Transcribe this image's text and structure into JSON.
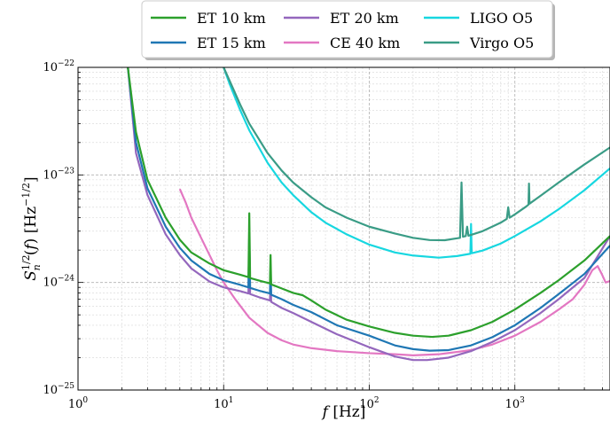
{
  "chart_data": {
    "type": "line",
    "xscale": "log",
    "yscale": "log",
    "xlim": [
      1,
      4500
    ],
    "ylim": [
      1e-25,
      1e-22
    ],
    "grid": true,
    "legend_position": "top-center",
    "xlabel": "f [Hz]",
    "ylabel": "S_n^{1/2}(f) [Hz^{-1/2}]",
    "x_ticks": [
      {
        "value": 1,
        "base": "10",
        "exp": "0"
      },
      {
        "value": 10,
        "base": "10",
        "exp": "1"
      },
      {
        "value": 100,
        "base": "10",
        "exp": "2"
      },
      {
        "value": 1000,
        "base": "10",
        "exp": "3"
      }
    ],
    "y_ticks": [
      {
        "value": 1e-25,
        "base": "10",
        "exp": "−25"
      },
      {
        "value": 1e-24,
        "base": "10",
        "exp": "−24"
      },
      {
        "value": 1e-23,
        "base": "10",
        "exp": "−23"
      },
      {
        "value": 1e-22,
        "base": "10",
        "exp": "−22"
      }
    ],
    "series": [
      {
        "name": "ET 10 km",
        "color": "#2ca02c",
        "points": [
          [
            2.2,
            1e-22
          ],
          [
            2.5,
            2.5e-23
          ],
          [
            3,
            9e-24
          ],
          [
            4,
            4e-24
          ],
          [
            5,
            2.5e-24
          ],
          [
            6,
            1.9e-24
          ],
          [
            8,
            1.5e-24
          ],
          [
            10,
            1.3e-24
          ],
          [
            13,
            1.18e-24
          ],
          [
            14.8,
            1.12e-24
          ],
          [
            15,
            4.4e-24
          ],
          [
            15.2,
            1.1e-24
          ],
          [
            18,
            1.03e-24
          ],
          [
            20.8,
            9.8e-25
          ],
          [
            21,
            1.8e-24
          ],
          [
            21.2,
            9.6e-25
          ],
          [
            25,
            8.8e-25
          ],
          [
            30,
            8e-25
          ],
          [
            35,
            7.6e-25
          ],
          [
            40,
            6.8e-25
          ],
          [
            50,
            5.6e-25
          ],
          [
            70,
            4.5e-25
          ],
          [
            100,
            3.9e-25
          ],
          [
            150,
            3.4e-25
          ],
          [
            200,
            3.2e-25
          ],
          [
            270,
            3.12e-25
          ],
          [
            350,
            3.2e-25
          ],
          [
            500,
            3.6e-25
          ],
          [
            700,
            4.3e-25
          ],
          [
            1000,
            5.6e-25
          ],
          [
            1500,
            8e-25
          ],
          [
            2000,
            1.05e-24
          ],
          [
            3000,
            1.6e-24
          ],
          [
            4500,
            2.7e-24
          ]
        ]
      },
      {
        "name": "ET 15 km",
        "color": "#1f77b4",
        "points": [
          [
            2.2,
            1e-22
          ],
          [
            2.5,
            2e-23
          ],
          [
            3,
            7.5e-24
          ],
          [
            4,
            3.3e-24
          ],
          [
            5,
            2.1e-24
          ],
          [
            6,
            1.6e-24
          ],
          [
            8,
            1.2e-24
          ],
          [
            10,
            1.05e-24
          ],
          [
            13,
            9.5e-25
          ],
          [
            14.8,
            9e-25
          ],
          [
            15,
            2.8e-24
          ],
          [
            15.2,
            8.9e-25
          ],
          [
            18,
            8.3e-25
          ],
          [
            20.8,
            7.9e-25
          ],
          [
            21,
            1.4e-24
          ],
          [
            21.2,
            7.7e-25
          ],
          [
            25,
            7e-25
          ],
          [
            30,
            6.2e-25
          ],
          [
            40,
            5.3e-25
          ],
          [
            60,
            4e-25
          ],
          [
            100,
            3.2e-25
          ],
          [
            150,
            2.6e-25
          ],
          [
            200,
            2.4e-25
          ],
          [
            260,
            2.32e-25
          ],
          [
            350,
            2.35e-25
          ],
          [
            500,
            2.6e-25
          ],
          [
            700,
            3.1e-25
          ],
          [
            1000,
            4e-25
          ],
          [
            1500,
            5.8e-25
          ],
          [
            2000,
            7.8e-25
          ],
          [
            3000,
            1.2e-24
          ],
          [
            4500,
            2.2e-24
          ]
        ]
      },
      {
        "name": "ET 20 km",
        "color": "#9467bd",
        "points": [
          [
            2.2,
            1e-22
          ],
          [
            2.5,
            1.6e-23
          ],
          [
            3,
            6.5e-24
          ],
          [
            4,
            2.8e-24
          ],
          [
            5,
            1.8e-24
          ],
          [
            6,
            1.35e-24
          ],
          [
            8,
            1.02e-24
          ],
          [
            10,
            9e-25
          ],
          [
            13,
            8.3e-25
          ],
          [
            14.8,
            7.9e-25
          ],
          [
            15,
            2.4e-24
          ],
          [
            15.2,
            7.8e-25
          ],
          [
            18,
            7.2e-25
          ],
          [
            20.8,
            6.8e-25
          ],
          [
            21,
            1.2e-24
          ],
          [
            21.2,
            6.6e-25
          ],
          [
            25,
            5.8e-25
          ],
          [
            30,
            5.2e-25
          ],
          [
            40,
            4.3e-25
          ],
          [
            60,
            3.3e-25
          ],
          [
            100,
            2.5e-25
          ],
          [
            150,
            2.05e-25
          ],
          [
            200,
            1.9e-25
          ],
          [
            250,
            1.9e-25
          ],
          [
            350,
            2e-25
          ],
          [
            500,
            2.3e-25
          ],
          [
            700,
            2.8e-25
          ],
          [
            1000,
            3.6e-25
          ],
          [
            1500,
            5.2e-25
          ],
          [
            2000,
            7e-25
          ],
          [
            3000,
            1.1e-24
          ],
          [
            4500,
            2.7e-24
          ]
        ]
      },
      {
        "name": "CE 40 km",
        "color": "#e377c2",
        "points": [
          [
            5,
            7.4e-24
          ],
          [
            5.5,
            5.5e-24
          ],
          [
            6,
            4e-24
          ],
          [
            7,
            2.6e-24
          ],
          [
            8,
            1.8e-24
          ],
          [
            9,
            1.3e-24
          ],
          [
            10,
            1e-24
          ],
          [
            12,
            7e-25
          ],
          [
            15,
            4.7e-25
          ],
          [
            20,
            3.4e-25
          ],
          [
            25,
            2.9e-25
          ],
          [
            30,
            2.65e-25
          ],
          [
            40,
            2.45e-25
          ],
          [
            60,
            2.3e-25
          ],
          [
            100,
            2.2e-25
          ],
          [
            150,
            2.15e-25
          ],
          [
            200,
            2.1e-25
          ],
          [
            300,
            2.15e-25
          ],
          [
            500,
            2.35e-25
          ],
          [
            700,
            2.65e-25
          ],
          [
            1000,
            3.2e-25
          ],
          [
            1500,
            4.3e-25
          ],
          [
            2000,
            5.6e-25
          ],
          [
            2500,
            7e-25
          ],
          [
            3000,
            9.5e-25
          ],
          [
            3400,
            1.3e-24
          ],
          [
            3700,
            1.42e-24
          ],
          [
            3950,
            1.2e-24
          ],
          [
            4200,
            1e-24
          ],
          [
            4500,
            1.03e-24
          ]
        ]
      },
      {
        "name": "LIGO O5",
        "color": "#17d7e0",
        "points": [
          [
            10,
            1e-22
          ],
          [
            11,
            7e-23
          ],
          [
            13,
            4e-23
          ],
          [
            15,
            2.6e-23
          ],
          [
            20,
            1.3e-23
          ],
          [
            25,
            8.5e-24
          ],
          [
            30,
            6.5e-24
          ],
          [
            40,
            4.5e-24
          ],
          [
            50,
            3.6e-24
          ],
          [
            70,
            2.8e-24
          ],
          [
            100,
            2.25e-24
          ],
          [
            150,
            1.9e-24
          ],
          [
            200,
            1.78e-24
          ],
          [
            300,
            1.7e-24
          ],
          [
            400,
            1.76e-24
          ],
          [
            495,
            1.85e-24
          ],
          [
            500,
            3.5e-24
          ],
          [
            505,
            1.87e-24
          ],
          [
            600,
            1.98e-24
          ],
          [
            800,
            2.3e-24
          ],
          [
            1000,
            2.7e-24
          ],
          [
            1500,
            3.7e-24
          ],
          [
            2000,
            4.8e-24
          ],
          [
            3000,
            7.2e-24
          ],
          [
            4500,
            1.15e-23
          ]
        ]
      },
      {
        "name": "Virgo O5",
        "color": "#3a9c86",
        "points": [
          [
            10,
            1e-22
          ],
          [
            11,
            7.5e-23
          ],
          [
            13,
            4.5e-23
          ],
          [
            15,
            3e-23
          ],
          [
            20,
            1.6e-23
          ],
          [
            25,
            1.1e-23
          ],
          [
            30,
            8.5e-24
          ],
          [
            40,
            6.2e-24
          ],
          [
            50,
            5e-24
          ],
          [
            70,
            4e-24
          ],
          [
            100,
            3.3e-24
          ],
          [
            150,
            2.85e-24
          ],
          [
            200,
            2.6e-24
          ],
          [
            260,
            2.48e-24
          ],
          [
            330,
            2.47e-24
          ],
          [
            420,
            2.6e-24
          ],
          [
            430,
            8.5e-24
          ],
          [
            440,
            2.66e-24
          ],
          [
            460,
            2.7e-24
          ],
          [
            470,
            3.3e-24
          ],
          [
            480,
            2.72e-24
          ],
          [
            600,
            3e-24
          ],
          [
            800,
            3.6e-24
          ],
          [
            880,
            3.9e-24
          ],
          [
            900,
            5e-24
          ],
          [
            920,
            4e-24
          ],
          [
            1000,
            4.3e-24
          ],
          [
            1200,
            5.1e-24
          ],
          [
            1240,
            5.3e-24
          ],
          [
            1250,
            8.3e-24
          ],
          [
            1260,
            5.4e-24
          ],
          [
            1500,
            6.4e-24
          ],
          [
            2000,
            8.5e-24
          ],
          [
            3000,
            1.25e-23
          ],
          [
            4500,
            1.8e-23
          ]
        ]
      }
    ]
  }
}
